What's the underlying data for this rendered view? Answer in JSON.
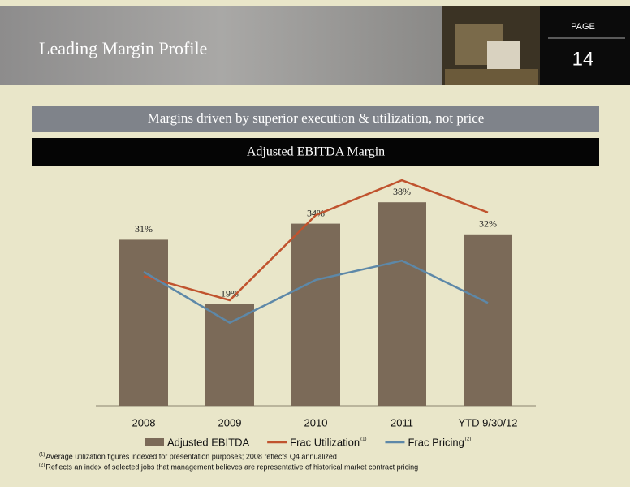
{
  "header": {
    "title": "Leading Margin Profile",
    "page_label": "PAGE",
    "page_number": "14"
  },
  "banners": [
    "Margins driven by superior execution & utilization, not price",
    "Adjusted EBITDA Margin"
  ],
  "chart_data": {
    "type": "bar",
    "categories": [
      "2008",
      "2009",
      "2010",
      "2011",
      "YTD 9/30/12"
    ],
    "ylim": [
      0,
      45
    ],
    "series": [
      {
        "name": "Adjusted EBITDA",
        "type": "bar",
        "color": "#7b6a58",
        "values": [
          31,
          19,
          34,
          38,
          32
        ],
        "value_labels": [
          "31%",
          "19%",
          "34%",
          "38%",
          "32%"
        ]
      },
      {
        "name": "Frac Utilization",
        "footnote_marker": "(1)",
        "type": "line",
        "color": "#c0532e",
        "values": [
          24.2,
          19.7,
          35.6,
          42.1,
          36.1
        ]
      },
      {
        "name": "Frac Pricing",
        "footnote_marker": "(2)",
        "type": "line",
        "color": "#5d88a8",
        "values": [
          25,
          15.5,
          23.5,
          27.1,
          19.2
        ]
      }
    ]
  },
  "footnotes": [
    {
      "marker": "(1)",
      "text": "Average utilization figures indexed for presentation purposes; 2008 reflects Q4 annualized"
    },
    {
      "marker": "(2)",
      "text": "Reflects an index of selected jobs that management believes are representative of historical market contract pricing"
    }
  ]
}
